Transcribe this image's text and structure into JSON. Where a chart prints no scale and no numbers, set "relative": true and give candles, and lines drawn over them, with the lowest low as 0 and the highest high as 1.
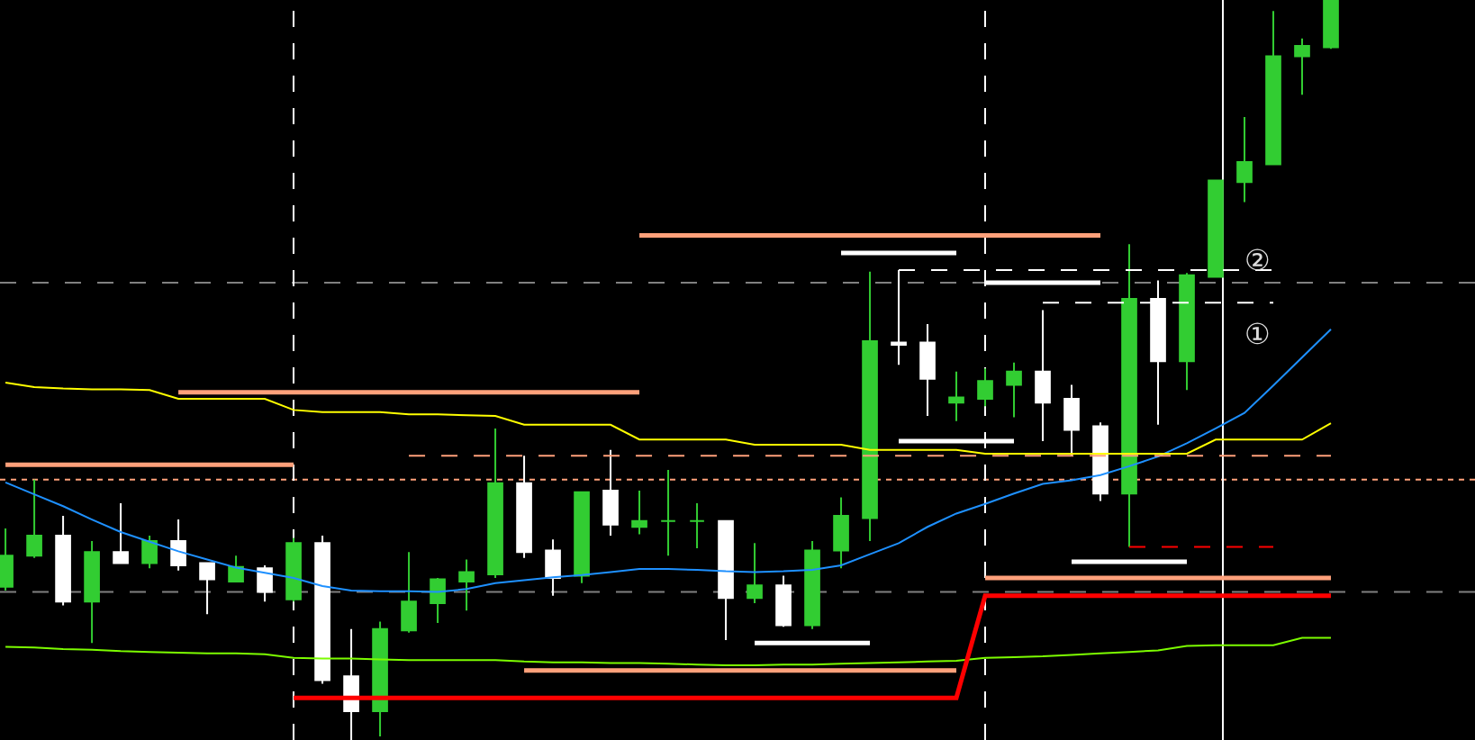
{
  "chart_data": {
    "type": "candlestick",
    "relative": true,
    "grid": false,
    "legend": false,
    "categories": [
      null,
      null,
      null,
      null,
      null,
      null,
      null,
      null,
      null,
      null,
      null,
      null,
      null,
      null,
      null,
      null,
      null,
      null,
      null,
      null,
      null,
      null,
      null,
      null,
      null,
      null,
      null,
      null,
      null,
      null,
      null,
      null,
      null,
      null,
      null,
      null,
      null,
      null,
      null,
      null,
      null,
      null,
      null,
      null,
      null,
      null,
      null
    ],
    "ohlc": [
      [
        0.207,
        0.286,
        0.202,
        0.249
      ],
      [
        0.249,
        0.352,
        0.246,
        0.276
      ],
      [
        0.276,
        0.303,
        0.182,
        0.187
      ],
      [
        0.187,
        0.269,
        0.131,
        0.254
      ],
      [
        0.254,
        0.32,
        0.239,
        0.239
      ],
      [
        0.239,
        0.276,
        0.232,
        0.269
      ],
      [
        0.269,
        0.298,
        0.229,
        0.236
      ],
      [
        0.239,
        0.239,
        0.17,
        0.217
      ],
      [
        0.214,
        0.249,
        0.214,
        0.234
      ],
      [
        0.232,
        0.236,
        0.187,
        0.2
      ],
      [
        0.19,
        0.273,
        0.187,
        0.266
      ],
      [
        0.266,
        0.276,
        0.076,
        0.081
      ],
      [
        0.086,
        0.15,
        0,
        0.039
      ],
      [
        0.039,
        0.16,
        0.005,
        0.15
      ],
      [
        0.148,
        0.254,
        0.145,
        0.187
      ],
      [
        0.185,
        0.219,
        0.158,
        0.217
      ],
      [
        0.214,
        0.244,
        0.175,
        0.227
      ],
      [
        0.224,
        0.421,
        0.219,
        0.347
      ],
      [
        0.347,
        0.384,
        0.246,
        0.254
      ],
      [
        0.256,
        0.271,
        0.195,
        0.219
      ],
      [
        0.222,
        0.335,
        0.212,
        0.335
      ],
      [
        0.337,
        0.392,
        0.276,
        0.291
      ],
      [
        0.288,
        0.337,
        0.278,
        0.296
      ],
      [
        0.296,
        0.365,
        0.249,
        0.296
      ],
      [
        0.296,
        0.32,
        0.259,
        0.296
      ],
      [
        0.296,
        0.296,
        0.135,
        0.192
      ],
      [
        0.192,
        0.266,
        0.185,
        0.209
      ],
      [
        0.209,
        0.222,
        0.153,
        0.155
      ],
      [
        0.155,
        0.269,
        0.15,
        0.256
      ],
      [
        0.256,
        0.328,
        0.232,
        0.303
      ],
      [
        0.3,
        0.633,
        0.269,
        0.539
      ],
      [
        0.537,
        0.635,
        0.507,
        0.534
      ],
      [
        0.537,
        0.562,
        0.438,
        0.488
      ],
      [
        0.456,
        0.498,
        0.431,
        0.463
      ],
      [
        0.461,
        0.502,
        0.451,
        0.485
      ],
      [
        0.48,
        0.51,
        0.436,
        0.498
      ],
      [
        0.498,
        0.581,
        0.404,
        0.456
      ],
      [
        0.461,
        0.48,
        0.384,
        0.419
      ],
      [
        0.424,
        0.429,
        0.323,
        0.333
      ],
      [
        0.333,
        0.67,
        0.261,
        0.596
      ],
      [
        0.596,
        0.621,
        0.426,
        0.512
      ],
      [
        0.512,
        0.631,
        0.473,
        0.628
      ],
      [
        0.626,
        0.756,
        0.626,
        0.756
      ],
      [
        0.754,
        0.842,
        0.727,
        0.781
      ],
      [
        0.778,
        0.985,
        0.778,
        0.924
      ],
      [
        0.924,
        0.948,
        0.872,
        0.938
      ],
      [
        0.936,
        1,
        0.934,
        1
      ]
    ],
    "series": [
      {
        "type": "line",
        "color": "#1e90ff",
        "line_style": "solid",
        "values": [
          0.348,
          0.332,
          0.316,
          0.298,
          0.281,
          0.268,
          0.255,
          0.244,
          0.233,
          0.226,
          0.219,
          0.208,
          0.202,
          0.201,
          0.201,
          0.2,
          0.204,
          0.212,
          0.216,
          0.22,
          0.223,
          0.227,
          0.231,
          0.231,
          0.23,
          0.228,
          0.227,
          0.228,
          0.23,
          0.236,
          0.251,
          0.266,
          0.288,
          0.306,
          0.319,
          0.333,
          0.346,
          0.351,
          0.358,
          0.37,
          0.383,
          0.401,
          0.421,
          0.442,
          0.479,
          0.517,
          0.555
        ]
      },
      {
        "type": "line",
        "color": "#ffff00",
        "line_style": "solid",
        "values": [
          0.483,
          0.477,
          0.475,
          0.474,
          0.474,
          0.473,
          0.461,
          0.461,
          0.461,
          0.461,
          0.446,
          0.443,
          0.443,
          0.443,
          0.44,
          0.44,
          0.439,
          0.438,
          0.426,
          0.426,
          0.426,
          0.426,
          0.406,
          0.406,
          0.406,
          0.406,
          0.399,
          0.399,
          0.399,
          0.399,
          0.392,
          0.392,
          0.392,
          0.392,
          0.387,
          0.387,
          0.387,
          0.387,
          0.387,
          0.387,
          0.387,
          0.387,
          0.406,
          0.406,
          0.406,
          0.406,
          0.428
        ]
      },
      {
        "type": "line",
        "color": "#7cfc00",
        "line_style": "solid",
        "values": [
          0.126,
          0.125,
          0.123,
          0.122,
          0.12,
          0.119,
          0.118,
          0.117,
          0.117,
          0.116,
          0.111,
          0.11,
          0.11,
          0.109,
          0.108,
          0.108,
          0.108,
          0.108,
          0.106,
          0.105,
          0.105,
          0.104,
          0.104,
          0.103,
          0.102,
          0.101,
          0.101,
          0.102,
          0.102,
          0.103,
          0.104,
          0.105,
          0.106,
          0.107,
          0.111,
          0.112,
          0.113,
          0.115,
          0.117,
          0.119,
          0.121,
          0.127,
          0.128,
          0.128,
          0.128,
          0.138,
          0.138
        ]
      },
      {
        "type": "line",
        "color": "#ff0000",
        "line_style": "solid",
        "values": [
          null,
          null,
          null,
          null,
          null,
          null,
          null,
          null,
          null,
          null,
          0.057,
          0.057,
          0.057,
          0.057,
          0.057,
          0.057,
          0.057,
          0.057,
          0.057,
          0.057,
          0.057,
          0.057,
          0.057,
          0.057,
          0.057,
          0.057,
          0.057,
          0.057,
          0.057,
          0.057,
          0.057,
          0.057,
          0.057,
          0.057,
          0.195,
          0.195,
          0.195,
          0.195,
          0.195,
          0.195,
          0.195,
          0.195,
          0.195,
          0.195,
          0.195,
          0.195,
          0.195
        ]
      },
      {
        "type": "line",
        "color": "#ff0000",
        "line_style": "dashed",
        "values": [
          null,
          null,
          null,
          null,
          null,
          null,
          null,
          null,
          null,
          null,
          null,
          null,
          null,
          null,
          null,
          null,
          null,
          null,
          null,
          null,
          null,
          null,
          null,
          null,
          null,
          null,
          null,
          null,
          null,
          null,
          null,
          null,
          null,
          null,
          null,
          null,
          null,
          null,
          null,
          0.261,
          0.261,
          0.261,
          0.261,
          0.261,
          0.261,
          null,
          null
        ]
      },
      {
        "type": "line",
        "color": "#ffa07a",
        "line_style": "solid",
        "values": [
          0.372,
          0.372,
          0.372,
          0.372,
          0.372,
          0.372,
          0.372,
          0.372,
          0.372,
          0.372,
          0.372,
          null,
          null,
          null,
          null,
          null,
          null,
          null,
          null,
          null,
          null,
          null,
          null,
          null,
          null,
          null,
          null,
          null,
          null,
          null,
          null,
          null,
          null,
          null,
          null,
          null,
          null,
          null,
          null,
          null,
          null,
          null,
          null,
          null,
          null,
          null,
          null
        ]
      },
      {
        "type": "line",
        "color": "#ffa07a",
        "line_style": "solid",
        "values": [
          null,
          null,
          null,
          null,
          null,
          null,
          0.47,
          0.47,
          0.47,
          0.47,
          0.47,
          0.47,
          0.47,
          0.47,
          0.47,
          0.47,
          0.47,
          0.47,
          0.47,
          0.47,
          0.47,
          0.47,
          0.47,
          null,
          null,
          null,
          null,
          null,
          null,
          null,
          null,
          null,
          null,
          null,
          null,
          null,
          null,
          null,
          null,
          null,
          null,
          null,
          null,
          null,
          null,
          null,
          null
        ]
      },
      {
        "type": "line",
        "color": "#ffa07a",
        "line_style": "solid",
        "values": [
          null,
          null,
          null,
          null,
          null,
          null,
          null,
          null,
          null,
          null,
          null,
          null,
          null,
          null,
          null,
          null,
          null,
          null,
          null,
          null,
          null,
          null,
          0.682,
          0.682,
          0.682,
          0.682,
          0.682,
          0.682,
          0.682,
          0.682,
          0.682,
          0.682,
          0.682,
          0.682,
          0.682,
          0.682,
          0.682,
          0.682,
          0.682,
          null,
          null,
          null,
          null,
          null,
          null,
          null,
          null
        ]
      },
      {
        "type": "line",
        "color": "#ffa07a",
        "line_style": "solid",
        "values": [
          null,
          null,
          null,
          null,
          null,
          null,
          null,
          null,
          null,
          null,
          null,
          null,
          null,
          null,
          null,
          null,
          null,
          null,
          0.094,
          0.094,
          0.094,
          0.094,
          0.094,
          0.094,
          0.094,
          0.094,
          0.094,
          0.094,
          0.094,
          0.094,
          0.094,
          0.094,
          0.094,
          0.094,
          null,
          null,
          null,
          null,
          null,
          null,
          null,
          null,
          null,
          null,
          null,
          null,
          null
        ]
      },
      {
        "type": "line",
        "color": "#ffa07a",
        "line_style": "solid",
        "values": [
          null,
          null,
          null,
          null,
          null,
          null,
          null,
          null,
          null,
          null,
          null,
          null,
          null,
          null,
          null,
          null,
          null,
          null,
          null,
          null,
          null,
          null,
          null,
          null,
          null,
          null,
          null,
          null,
          null,
          null,
          null,
          null,
          null,
          null,
          0.219,
          0.219,
          0.219,
          0.219,
          0.219,
          0.219,
          0.219,
          0.219,
          0.219,
          0.219,
          0.219,
          0.219,
          0.219
        ]
      },
      {
        "type": "line",
        "color": "#ffa07a",
        "line_style": "dashed",
        "values": [
          null,
          null,
          null,
          null,
          null,
          null,
          null,
          null,
          null,
          null,
          null,
          null,
          null,
          null,
          0.384,
          0.384,
          0.384,
          0.384,
          0.384,
          0.384,
          0.384,
          0.384,
          0.384,
          0.384,
          0.384,
          0.384,
          0.384,
          0.384,
          0.384,
          0.384,
          0.384,
          0.384,
          0.384,
          0.384,
          0.384,
          0.384,
          0.384,
          0.384,
          0.384,
          0.384,
          0.384,
          0.384,
          0.384,
          0.384,
          0.384,
          0.384,
          0.384
        ]
      },
      {
        "type": "line",
        "color": "#ffffff",
        "line_style": "solid",
        "values": [
          null,
          null,
          null,
          null,
          null,
          null,
          null,
          null,
          null,
          null,
          null,
          null,
          null,
          null,
          null,
          null,
          null,
          null,
          null,
          null,
          null,
          null,
          null,
          null,
          null,
          null,
          null,
          null,
          null,
          0.658,
          0.658,
          0.658,
          0.658,
          0.658,
          null,
          null,
          null,
          null,
          null,
          null,
          null,
          null,
          null,
          null,
          null,
          null,
          null
        ]
      },
      {
        "type": "line",
        "color": "#ffffff",
        "line_style": "solid",
        "values": [
          null,
          null,
          null,
          null,
          null,
          null,
          null,
          null,
          null,
          null,
          null,
          null,
          null,
          null,
          null,
          null,
          null,
          null,
          null,
          null,
          null,
          null,
          null,
          null,
          null,
          null,
          null,
          null,
          null,
          null,
          null,
          null,
          null,
          null,
          0.618,
          0.618,
          0.618,
          0.618,
          0.618,
          null,
          null,
          null,
          null,
          null,
          null,
          null,
          null
        ]
      },
      {
        "type": "line",
        "color": "#ffffff",
        "line_style": "solid",
        "values": [
          null,
          null,
          null,
          null,
          null,
          null,
          null,
          null,
          null,
          null,
          null,
          null,
          null,
          null,
          null,
          null,
          null,
          null,
          null,
          null,
          null,
          null,
          null,
          null,
          null,
          null,
          null,
          null,
          null,
          null,
          null,
          0.404,
          0.404,
          0.404,
          0.404,
          0.404,
          null,
          null,
          null,
          null,
          null,
          null,
          null,
          null,
          null,
          null,
          null
        ]
      },
      {
        "type": "line",
        "color": "#ffffff",
        "line_style": "solid",
        "values": [
          null,
          null,
          null,
          null,
          null,
          null,
          null,
          null,
          null,
          null,
          null,
          null,
          null,
          null,
          null,
          null,
          null,
          null,
          null,
          null,
          null,
          null,
          null,
          null,
          null,
          null,
          null,
          null,
          null,
          null,
          null,
          null,
          null,
          null,
          null,
          null,
          null,
          0.241,
          0.241,
          0.241,
          0.241,
          0.241,
          null,
          null,
          null,
          null,
          null
        ]
      },
      {
        "type": "line",
        "color": "#ffffff",
        "line_style": "solid",
        "values": [
          null,
          null,
          null,
          null,
          null,
          null,
          null,
          null,
          null,
          null,
          null,
          null,
          null,
          null,
          null,
          null,
          null,
          null,
          null,
          null,
          null,
          null,
          null,
          null,
          null,
          null,
          0.131,
          0.131,
          0.131,
          0.131,
          0.131,
          null,
          null,
          null,
          null,
          null,
          null,
          null,
          null,
          null,
          null,
          null,
          null,
          null,
          null,
          null,
          null
        ]
      },
      {
        "type": "line",
        "color": "#ffffff",
        "line_style": "dashed",
        "values": [
          null,
          null,
          null,
          null,
          null,
          null,
          null,
          null,
          null,
          null,
          null,
          null,
          null,
          null,
          null,
          null,
          null,
          null,
          null,
          null,
          null,
          null,
          null,
          null,
          null,
          null,
          null,
          null,
          null,
          null,
          null,
          0.635,
          0.635,
          0.635,
          0.635,
          0.635,
          0.635,
          0.635,
          0.635,
          0.635,
          0.635,
          0.635,
          0.635,
          0.635,
          0.635,
          null,
          null
        ]
      },
      {
        "type": "line",
        "color": "#ffffff",
        "line_style": "dashed",
        "values": [
          null,
          null,
          null,
          null,
          null,
          null,
          null,
          null,
          null,
          null,
          null,
          null,
          null,
          null,
          null,
          null,
          null,
          null,
          null,
          null,
          null,
          null,
          null,
          null,
          null,
          null,
          null,
          null,
          null,
          null,
          null,
          null,
          null,
          null,
          null,
          null,
          0.591,
          0.591,
          0.591,
          0.591,
          0.591,
          0.591,
          0.591,
          0.591,
          0.591,
          null,
          null
        ]
      }
    ],
    "ref_lines": [
      {
        "axis": "y",
        "value": 0.618,
        "color": "#808080",
        "line_style": "dashed"
      },
      {
        "axis": "y",
        "value": 0.2,
        "color": "#808080",
        "line_style": "dashed"
      },
      {
        "axis": "y",
        "value": 0.352,
        "color": "#ffa07a",
        "line_style": "dotted"
      }
    ],
    "annotations": [
      "②",
      "①"
    ]
  }
}
